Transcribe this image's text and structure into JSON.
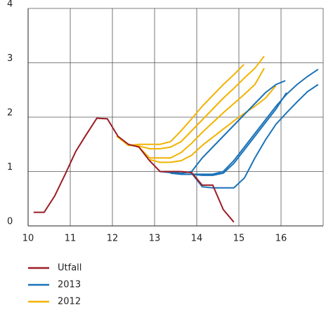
{
  "chart_data": {
    "type": "line",
    "xlim": [
      10,
      17
    ],
    "xticks": [
      10,
      11,
      12,
      13,
      14,
      15,
      16
    ],
    "ylim": [
      0,
      4
    ],
    "yticks": [
      0,
      1,
      2,
      3,
      4
    ],
    "grid": true,
    "series": [
      {
        "name": "Utfall",
        "color": "#9b1c24",
        "lines": [
          {
            "x": [
              10.13,
              10.38,
              10.63,
              10.88,
              11.13,
              11.38,
              11.63,
              11.88,
              12.13,
              12.38,
              12.63,
              12.88,
              13.13,
              13.38,
              13.63,
              13.88,
              14.13,
              14.38,
              14.63,
              14.88
            ],
            "values": [
              0.25,
              0.25,
              0.55,
              0.95,
              1.37,
              1.68,
              1.98,
              1.97,
              1.65,
              1.5,
              1.45,
              1.2,
              1.0,
              1.0,
              1.0,
              0.98,
              0.75,
              0.75,
              0.3,
              0.07
            ]
          }
        ]
      },
      {
        "name": "2013",
        "color": "#1a72b8",
        "lines": [
          {
            "x": [
              13.13,
              13.38,
              13.63,
              13.88,
              14.13,
              14.38,
              14.63,
              14.88,
              15.13,
              15.38,
              15.63,
              15.88,
              16.1
            ],
            "values": [
              1.0,
              0.98,
              0.97,
              1.0,
              1.25,
              1.45,
              1.65,
              1.85,
              2.05,
              2.25,
              2.45,
              2.6,
              2.67
            ]
          },
          {
            "x": [
              13.38,
              13.63,
              13.88,
              14.13,
              14.38,
              14.63,
              14.88,
              15.13,
              15.38,
              15.63,
              15.88,
              16.13,
              16.38,
              16.63,
              16.88
            ],
            "values": [
              0.97,
              0.95,
              0.95,
              0.95,
              0.95,
              1.0,
              1.2,
              1.45,
              1.7,
              1.95,
              2.2,
              2.42,
              2.6,
              2.75,
              2.88
            ]
          },
          {
            "x": [
              13.63,
              13.88,
              14.13,
              14.38,
              14.63,
              14.88,
              15.13,
              15.38,
              15.63,
              15.88,
              16.13
            ],
            "values": [
              0.95,
              0.95,
              0.93,
              0.93,
              0.97,
              1.15,
              1.4,
              1.65,
              1.9,
              2.15,
              2.45
            ]
          },
          {
            "x": [
              13.88,
              14.13,
              14.38,
              14.63,
              14.88,
              15.13,
              15.38,
              15.63,
              15.88,
              16.13,
              16.38,
              16.63,
              16.88
            ],
            "values": [
              0.97,
              0.72,
              0.7,
              0.7,
              0.7,
              0.88,
              1.25,
              1.58,
              1.87,
              2.08,
              2.28,
              2.47,
              2.6
            ]
          }
        ]
      },
      {
        "name": "2012",
        "color": "#f2b300",
        "lines": [
          {
            "x": [
              12.1,
              12.38,
              12.63,
              12.88,
              13.13,
              13.38,
              13.63,
              13.88,
              14.13,
              14.38,
              14.63,
              14.88,
              15.12
            ],
            "values": [
              1.65,
              1.48,
              1.5,
              1.5,
              1.5,
              1.55,
              1.75,
              1.97,
              2.2,
              2.4,
              2.6,
              2.78,
              2.97
            ]
          },
          {
            "x": [
              12.38,
              12.63,
              12.88,
              13.13,
              13.38,
              13.63,
              13.88,
              14.13,
              14.38,
              14.63,
              14.88,
              15.13,
              15.38,
              15.6
            ],
            "values": [
              1.48,
              1.47,
              1.42,
              1.42,
              1.45,
              1.55,
              1.75,
              1.95,
              2.15,
              2.35,
              2.53,
              2.72,
              2.9,
              3.12
            ]
          },
          {
            "x": [
              12.63,
              12.88,
              13.13,
              13.38,
              13.63,
              13.88,
              14.13,
              14.38,
              14.63,
              14.88,
              15.13,
              15.38,
              15.6
            ],
            "values": [
              1.45,
              1.25,
              1.25,
              1.25,
              1.35,
              1.52,
              1.72,
              1.9,
              2.08,
              2.25,
              2.42,
              2.6,
              2.9
            ]
          },
          {
            "x": [
              12.88,
              13.13,
              13.38,
              13.63,
              13.88,
              14.13,
              14.38,
              14.63,
              14.88,
              15.13,
              15.38,
              15.63,
              15.88
            ],
            "values": [
              1.22,
              1.17,
              1.17,
              1.2,
              1.3,
              1.48,
              1.63,
              1.78,
              1.93,
              2.07,
              2.2,
              2.35,
              2.58
            ]
          }
        ]
      }
    ]
  }
}
